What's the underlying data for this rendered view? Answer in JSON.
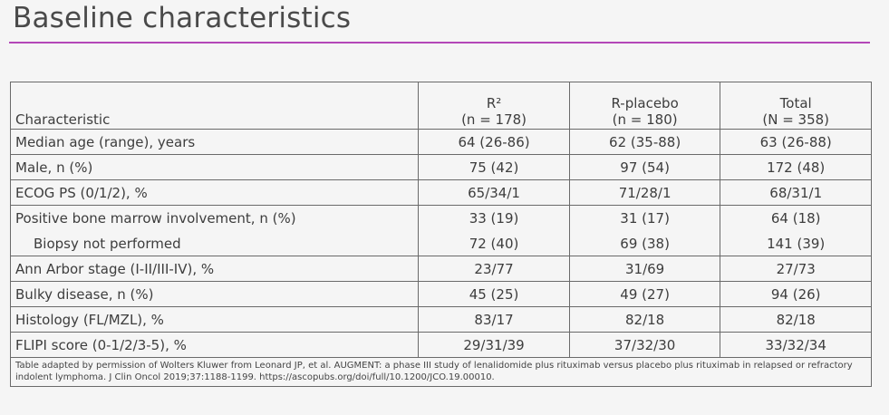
{
  "slide": {
    "title": "Baseline characteristics"
  },
  "table": {
    "headers": {
      "characteristic": "Characteristic",
      "r2": {
        "name": "R²",
        "n": "(n = 178)"
      },
      "rplacebo": {
        "name": "R-placebo",
        "n": "(n = 180)"
      },
      "total": {
        "name": "Total",
        "n": "(N = 358)"
      }
    },
    "rows": [
      {
        "label": "Median age (range), years",
        "r2": "64 (26-86)",
        "rplacebo": "62 (35-88)",
        "total": "63 (26-88)"
      },
      {
        "label": "Male, n (%)",
        "r2": "75 (42)",
        "rplacebo": "97 (54)",
        "total": "172 (48)"
      },
      {
        "label": "ECOG PS (0/1/2), %",
        "r2": "65/34/1",
        "rplacebo": "71/28/1",
        "total": "68/31/1"
      },
      {
        "label": "Positive bone marrow involvement, n (%)",
        "r2": "33 (19)",
        "rplacebo": "31 (17)",
        "total": "64 (18)"
      },
      {
        "label": "Biopsy not performed",
        "r2": "72 (40)",
        "rplacebo": "69 (38)",
        "total": "141 (39)"
      },
      {
        "label": "Ann Arbor stage (I-II/III-IV), %",
        "r2": "23/77",
        "rplacebo": "31/69",
        "total": "27/73"
      },
      {
        "label": "Bulky disease, n (%)",
        "r2": "45 (25)",
        "rplacebo": "49 (27)",
        "total": "94 (26)"
      },
      {
        "label": "Histology (FL/MZL), %",
        "r2": "83/17",
        "rplacebo": "82/18",
        "total": "82/18"
      },
      {
        "label": "FLIPI score (0-1/2/3-5), %",
        "r2": "29/31/39",
        "rplacebo": "37/32/30",
        "total": "33/32/34"
      }
    ],
    "footnote": "Table adapted by permission of Wolters Kluwer from Leonard JP, et al. AUGMENT: a phase III study of lenalidomide plus rituximab versus placebo plus rituximab in relapsed or refractory indolent lymphoma. J Clin Oncol 2019;37:1188-1199. https://ascopubs.org/doi/full/10.1200/JCO.19.00010."
  }
}
